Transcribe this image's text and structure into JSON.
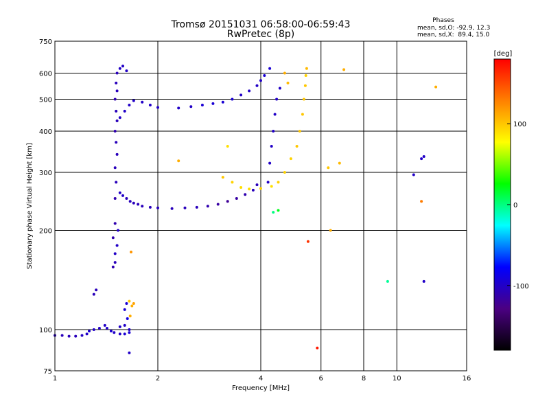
{
  "chart_data": {
    "type": "scatter",
    "title": "Tromsø 20151031 06:58:00-06:59:43",
    "subtitle": "RwPretec (8p)",
    "xlabel": "Frequency [MHz]",
    "ylabel": "Stationary phase Virtual Height [km]",
    "x_scale": "log",
    "y_scale": "log",
    "xlim": [
      1,
      16
    ],
    "ylim": [
      75,
      750
    ],
    "x_ticks": [
      {
        "v": 1,
        "label": "1"
      },
      {
        "v": 2,
        "label": "2"
      },
      {
        "v": 4,
        "label": "4"
      },
      {
        "v": 6,
        "label": "6"
      },
      {
        "v": 8,
        "label": "8"
      },
      {
        "v": 10,
        "label": "10"
      },
      {
        "v": 16,
        "label": "16"
      }
    ],
    "y_ticks": [
      {
        "v": 75,
        "label": "75"
      },
      {
        "v": 100,
        "label": "100"
      },
      {
        "v": 200,
        "label": "200"
      },
      {
        "v": 300,
        "label": "300"
      },
      {
        "v": 400,
        "label": "400"
      },
      {
        "v": 500,
        "label": "500"
      },
      {
        "v": 600,
        "label": "600"
      },
      {
        "v": 750,
        "label": "750"
      }
    ],
    "grid": true,
    "stats": {
      "heading": "Phases",
      "o_line": "mean, sd,O: -92.9, 12.3",
      "x_line": "mean, sd,X:  89.4, 15.0"
    },
    "colorbar": {
      "label": "[deg]",
      "min": -180,
      "max": 180,
      "ticks": [
        {
          "v": 100,
          "label": "100"
        },
        {
          "v": 0,
          "label": "0"
        },
        {
          "v": -100,
          "label": "-100"
        }
      ],
      "colors": [
        "#000000",
        "#4b0082",
        "#0000ff",
        "#00ffff",
        "#00ff00",
        "#ffff00",
        "#ff8000",
        "#ff0000"
      ]
    },
    "series": [
      {
        "points": [
          [
            1.0,
            96,
            -105
          ],
          [
            1.05,
            96,
            -105
          ],
          [
            1.1,
            95.5,
            -105
          ],
          [
            1.15,
            95.5,
            -105
          ],
          [
            1.2,
            96,
            -100
          ],
          [
            1.24,
            97,
            -100
          ],
          [
            1.26,
            99,
            -95
          ],
          [
            1.3,
            100,
            -100
          ],
          [
            1.35,
            101,
            -100
          ],
          [
            1.4,
            103,
            -100
          ],
          [
            1.42,
            101,
            -100
          ],
          [
            1.46,
            99,
            -95
          ],
          [
            1.49,
            98,
            -100
          ],
          [
            1.55,
            97,
            -100
          ],
          [
            1.6,
            97,
            -95
          ],
          [
            1.65,
            98,
            -95
          ],
          [
            1.55,
            102,
            -100
          ],
          [
            1.6,
            103,
            -100
          ],
          [
            1.65,
            100,
            -100
          ],
          [
            1.3,
            128,
            -105
          ],
          [
            1.32,
            132,
            -105
          ],
          [
            1.48,
            155,
            -110
          ],
          [
            1.5,
            160,
            -105
          ],
          [
            1.5,
            170,
            -100
          ],
          [
            1.52,
            180,
            -100
          ],
          [
            1.48,
            190,
            -110
          ],
          [
            1.5,
            210,
            -110
          ],
          [
            1.53,
            200,
            -100
          ],
          [
            1.6,
            115,
            -95
          ],
          [
            1.62,
            120,
            -95
          ],
          [
            1.65,
            122,
            100
          ],
          [
            1.68,
            118,
            110
          ],
          [
            1.7,
            120,
            115
          ],
          [
            1.63,
            108,
            -90
          ],
          [
            1.66,
            110,
            110
          ],
          [
            1.67,
            172,
            120
          ],
          [
            1.5,
            250,
            -110
          ],
          [
            1.51,
            280,
            -105
          ],
          [
            1.5,
            310,
            -105
          ],
          [
            1.52,
            340,
            -105
          ],
          [
            1.51,
            370,
            -105
          ],
          [
            1.5,
            400,
            -110
          ],
          [
            1.52,
            430,
            -105
          ],
          [
            1.51,
            460,
            -105
          ],
          [
            1.5,
            500,
            -110
          ],
          [
            1.52,
            530,
            -105
          ],
          [
            1.51,
            560,
            -105
          ],
          [
            1.52,
            600,
            -105
          ],
          [
            1.55,
            620,
            -100
          ],
          [
            1.58,
            630,
            -100
          ],
          [
            1.62,
            610,
            -100
          ],
          [
            1.55,
            260,
            -100
          ],
          [
            1.58,
            255,
            -100
          ],
          [
            1.62,
            250,
            -105
          ],
          [
            1.66,
            245,
            -105
          ],
          [
            1.7,
            242,
            -105
          ],
          [
            1.75,
            240,
            -105
          ],
          [
            1.8,
            237,
            -105
          ],
          [
            1.9,
            235,
            -105
          ],
          [
            2.0,
            234,
            -105
          ],
          [
            2.2,
            233,
            -105
          ],
          [
            2.4,
            234,
            -105
          ],
          [
            2.6,
            235,
            -105
          ],
          [
            2.8,
            237,
            -110
          ],
          [
            3.0,
            240,
            -115
          ],
          [
            3.2,
            245,
            -120
          ],
          [
            3.4,
            250,
            -115
          ],
          [
            3.6,
            257,
            -110
          ],
          [
            3.8,
            265,
            -105
          ],
          [
            3.9,
            275,
            -105
          ],
          [
            1.55,
            440,
            -100
          ],
          [
            1.6,
            460,
            -100
          ],
          [
            1.65,
            480,
            -100
          ],
          [
            1.7,
            495,
            -100
          ],
          [
            1.8,
            490,
            -100
          ],
          [
            1.9,
            480,
            -100
          ],
          [
            2.0,
            472,
            -100
          ],
          [
            2.3,
            470,
            -100
          ],
          [
            2.5,
            475,
            -100
          ],
          [
            2.7,
            480,
            -95
          ],
          [
            2.9,
            485,
            -95
          ],
          [
            3.1,
            490,
            -95
          ],
          [
            3.3,
            500,
            -95
          ],
          [
            3.5,
            515,
            -100
          ],
          [
            3.7,
            530,
            -100
          ],
          [
            3.9,
            550,
            -100
          ],
          [
            4.0,
            570,
            -100
          ],
          [
            4.1,
            590,
            -95
          ],
          [
            4.25,
            620,
            -95
          ],
          [
            4.2,
            280,
            -100
          ],
          [
            4.25,
            320,
            -100
          ],
          [
            4.3,
            360,
            -100
          ],
          [
            4.35,
            400,
            -100
          ],
          [
            4.4,
            450,
            -100
          ],
          [
            4.45,
            500,
            -100
          ],
          [
            4.55,
            540,
            -100
          ],
          [
            3.1,
            290,
            100
          ],
          [
            3.3,
            280,
            95
          ],
          [
            3.5,
            270,
            90
          ],
          [
            3.7,
            267,
            90
          ],
          [
            4.0,
            268,
            95
          ],
          [
            4.3,
            272,
            90
          ],
          [
            4.5,
            280,
            95
          ],
          [
            4.7,
            300,
            95
          ],
          [
            4.9,
            330,
            95
          ],
          [
            5.1,
            360,
            100
          ],
          [
            5.2,
            400,
            100
          ],
          [
            5.3,
            450,
            100
          ],
          [
            5.35,
            500,
            100
          ],
          [
            5.4,
            550,
            100
          ],
          [
            5.42,
            590,
            95
          ],
          [
            5.45,
            620,
            105
          ],
          [
            4.7,
            600,
            110
          ],
          [
            4.8,
            560,
            105
          ],
          [
            2.3,
            325,
            110
          ],
          [
            3.2,
            360,
            90
          ],
          [
            6.8,
            320,
            105
          ],
          [
            7.0,
            615,
            110
          ],
          [
            13.0,
            545,
            110
          ],
          [
            11.2,
            295,
            -100
          ],
          [
            11.8,
            330,
            -100
          ],
          [
            12.0,
            335,
            -100
          ],
          [
            12.0,
            140,
            -100
          ],
          [
            9.4,
            140,
            -5
          ],
          [
            11.8,
            245,
            130
          ],
          [
            5.5,
            185,
            160
          ],
          [
            6.4,
            200,
            110
          ],
          [
            5.85,
            88,
            170
          ],
          [
            1.65,
            85,
            -100
          ],
          [
            4.35,
            227,
            0
          ],
          [
            6.3,
            310,
            100
          ],
          [
            4.5,
            230,
            20
          ]
        ]
      }
    ]
  }
}
